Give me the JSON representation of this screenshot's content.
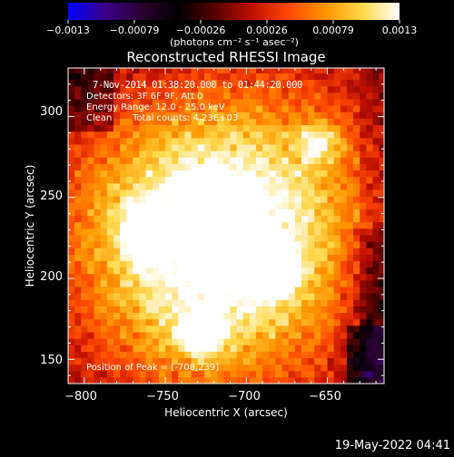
{
  "chart_data": {
    "type": "heatmap",
    "title": "Reconstructed RHESSI Image",
    "xlabel": "Heliocentric X (arcsec)",
    "ylabel": "Heliocentric Y (arcsec)",
    "xlim": [
      -810,
      -615
    ],
    "ylim": [
      135,
      330
    ],
    "x_ticks": [
      -800,
      -750,
      -700,
      -650
    ],
    "x_tick_labels": [
      "−800",
      "−750",
      "−700",
      "−650"
    ],
    "y_ticks": [
      150,
      200,
      250,
      300
    ],
    "y_tick_labels": [
      "150",
      "200",
      "250",
      "300"
    ],
    "colorbar": {
      "range": [
        -0.0013,
        0.0013
      ],
      "tick_labels": [
        "−0.0013",
        "−0.00079",
        "−0.00026",
        "0.00026",
        "0.00079",
        "0.0013"
      ],
      "units_label": "(photons cm⁻² s⁻¹ asec⁻²)",
      "colormap": [
        "#0000ff",
        "#3a0088",
        "#2a0030",
        "#000000",
        "#5a0000",
        "#c01000",
        "#ff4a00",
        "#ff9600",
        "#ffd84a",
        "#ffffff"
      ]
    },
    "peaks": [
      {
        "x": -708,
        "y": 239,
        "level": 1.0
      },
      {
        "x": -763,
        "y": 229,
        "level": 0.82
      },
      {
        "x": -730,
        "y": 248,
        "level": 0.82
      },
      {
        "x": -683,
        "y": 205,
        "level": 0.8
      },
      {
        "x": -728,
        "y": 167,
        "level": 0.76
      },
      {
        "x": -655,
        "y": 285,
        "level": 0.48
      }
    ],
    "grid": false,
    "legend": "none"
  },
  "annotations": {
    "time_range": "7-Nov-2014 01:38:20.000 to 01:44:20.000",
    "detectors": "Detectors: 3F 6F 9F, Att 0",
    "energy": "Energy Range: 12.0 - 25.0 keV",
    "method": "Clean",
    "counts": "Total counts: 4.23E+03",
    "peak_position": "Position of Peak = [-708,239]"
  },
  "footer": {
    "timestamp": "19-May-2022 04:41"
  }
}
